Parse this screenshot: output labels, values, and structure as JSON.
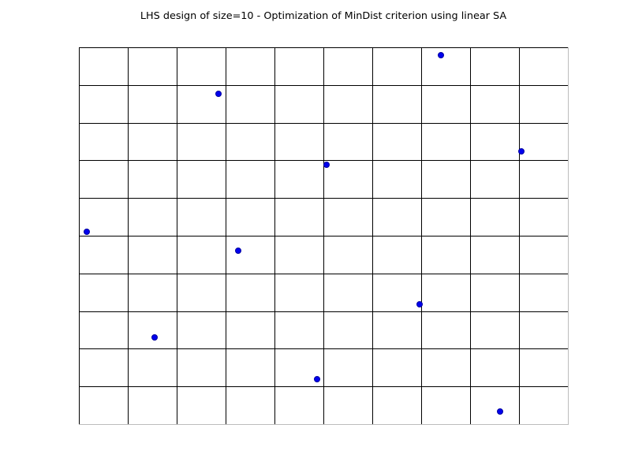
{
  "chart": {
    "title": "LHS design of size=10 - Optimization of MinDist criterion using linear SA"
  },
  "chart_data": {
    "type": "scatter",
    "title": "LHS design of size=10 - Optimization of MinDist criterion using linear SA",
    "xlabel": "",
    "ylabel": "",
    "xlim": [
      0,
      1
    ],
    "ylim": [
      0,
      1
    ],
    "grid": true,
    "grid_divisions": 10,
    "legend": "none",
    "tick_labels_visible": false,
    "grid_color": "#000000",
    "frame_color": "#bcbcbc",
    "series": [
      {
        "name": "lhs-design-points",
        "marker": "circle",
        "marker_size_px": 8,
        "fill_color": "#0000ee",
        "edge_color": "#0000a0",
        "points": [
          [
            0.74,
            0.98
          ],
          [
            0.285,
            0.877
          ],
          [
            0.905,
            0.724
          ],
          [
            0.506,
            0.688
          ],
          [
            0.016,
            0.51
          ],
          [
            0.326,
            0.46
          ],
          [
            0.696,
            0.319
          ],
          [
            0.155,
            0.231
          ],
          [
            0.487,
            0.119
          ],
          [
            0.862,
            0.033
          ]
        ]
      }
    ]
  }
}
